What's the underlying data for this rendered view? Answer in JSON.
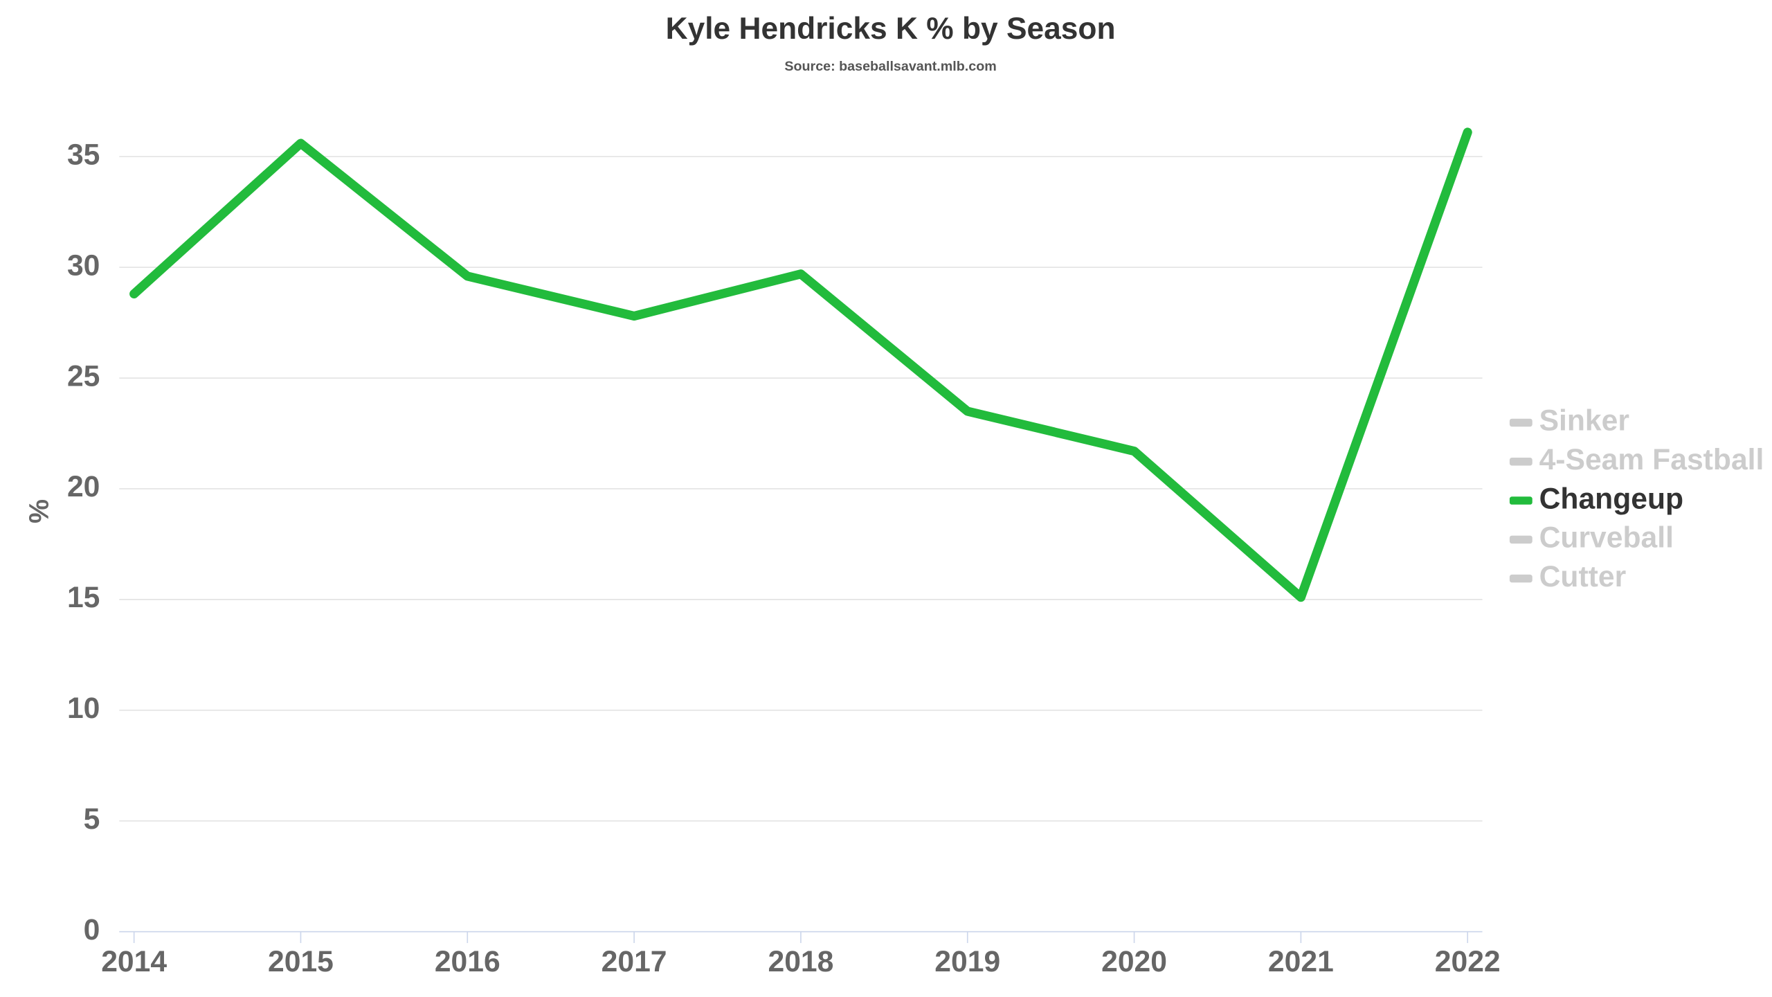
{
  "chart_data": {
    "type": "line",
    "title": "Kyle Hendricks K % by Season",
    "subtitle": "Source: baseballsavant.mlb.com",
    "y_label": "%",
    "categories": [
      "2014",
      "2015",
      "2016",
      "2017",
      "2018",
      "2019",
      "2020",
      "2021",
      "2022"
    ],
    "series": [
      {
        "name": "Sinker",
        "color": "#cccccc",
        "hidden": true
      },
      {
        "name": "4-Seam Fastball",
        "color": "#cccccc",
        "hidden": true
      },
      {
        "name": "Changeup",
        "color": "#22bb3c",
        "values": [
          28.8,
          35.6,
          29.6,
          27.8,
          29.7,
          23.5,
          21.7,
          15.1,
          36.1
        ]
      },
      {
        "name": "Curveball",
        "color": "#cccccc",
        "hidden": true
      },
      {
        "name": "Cutter",
        "color": "#cccccc",
        "hidden": true
      }
    ],
    "ylim": [
      0,
      36.5
    ],
    "yticks": [
      0,
      5,
      10,
      15,
      20,
      25,
      30,
      35
    ],
    "grid": true,
    "legend": "right"
  }
}
